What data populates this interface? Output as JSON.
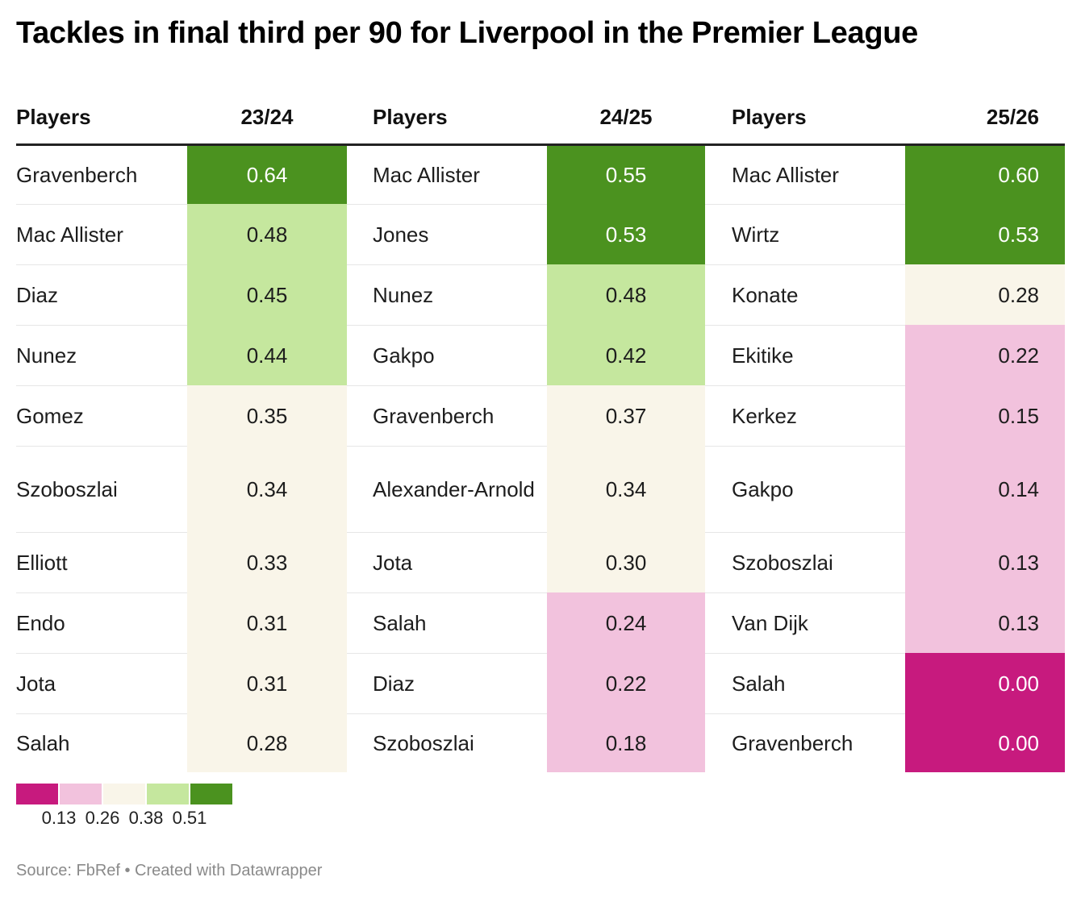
{
  "title": "Tackles in final third per 90 for Liverpool in the Premier League",
  "headers": {
    "players": "Players",
    "season1": "23/24",
    "season2": "24/25",
    "season3": "25/26"
  },
  "chart_data": {
    "type": "table",
    "title": "Tackles in final third per 90 for Liverpool in the Premier League",
    "columns": [
      "Players",
      "23/24",
      "Players",
      "24/25",
      "Players",
      "25/26"
    ],
    "rows": [
      [
        [
          "Gravenberch",
          "0.64"
        ],
        [
          "Mac Allister",
          "0.55"
        ],
        [
          "Mac Allister",
          "0.60"
        ]
      ],
      [
        [
          "Mac Allister",
          "0.48"
        ],
        [
          "Jones",
          "0.53"
        ],
        [
          "Wirtz",
          "0.53"
        ]
      ],
      [
        [
          "Diaz",
          "0.45"
        ],
        [
          "Nunez",
          "0.48"
        ],
        [
          "Konate",
          "0.28"
        ]
      ],
      [
        [
          "Nunez",
          "0.44"
        ],
        [
          "Gakpo",
          "0.42"
        ],
        [
          "Ekitike",
          "0.22"
        ]
      ],
      [
        [
          "Gomez",
          "0.35"
        ],
        [
          "Gravenberch",
          "0.37"
        ],
        [
          "Kerkez",
          "0.15"
        ]
      ],
      [
        [
          "Szoboszlai",
          "0.34"
        ],
        [
          "Alexander-Arnold",
          "0.34"
        ],
        [
          "Gakpo",
          "0.14"
        ]
      ],
      [
        [
          "Elliott",
          "0.33"
        ],
        [
          "Jota",
          "0.30"
        ],
        [
          "Szoboszlai",
          "0.13"
        ]
      ],
      [
        [
          "Endo",
          "0.31"
        ],
        [
          "Salah",
          "0.24"
        ],
        [
          "Van Dijk",
          "0.13"
        ]
      ],
      [
        [
          "Jota",
          "0.31"
        ],
        [
          "Diaz",
          "0.22"
        ],
        [
          "Salah",
          "0.00"
        ]
      ],
      [
        [
          "Salah",
          "0.28"
        ],
        [
          "Szoboszlai",
          "0.18"
        ],
        [
          "Gravenberch",
          "0.00"
        ]
      ]
    ]
  },
  "legend": {
    "thresholds": [
      0.13,
      0.26,
      0.38,
      0.51
    ],
    "labels": [
      "0.13",
      "0.26",
      "0.38",
      "0.51"
    ],
    "colors": [
      "#c71a7e",
      "#f2c2dd",
      "#f9f5e9",
      "#c5e79e",
      "#4b921f"
    ]
  },
  "text_colors": {
    "dark": "#1d1d1d",
    "light": "#ffffff"
  },
  "source": "Source: FbRef • Created with Datawrapper"
}
